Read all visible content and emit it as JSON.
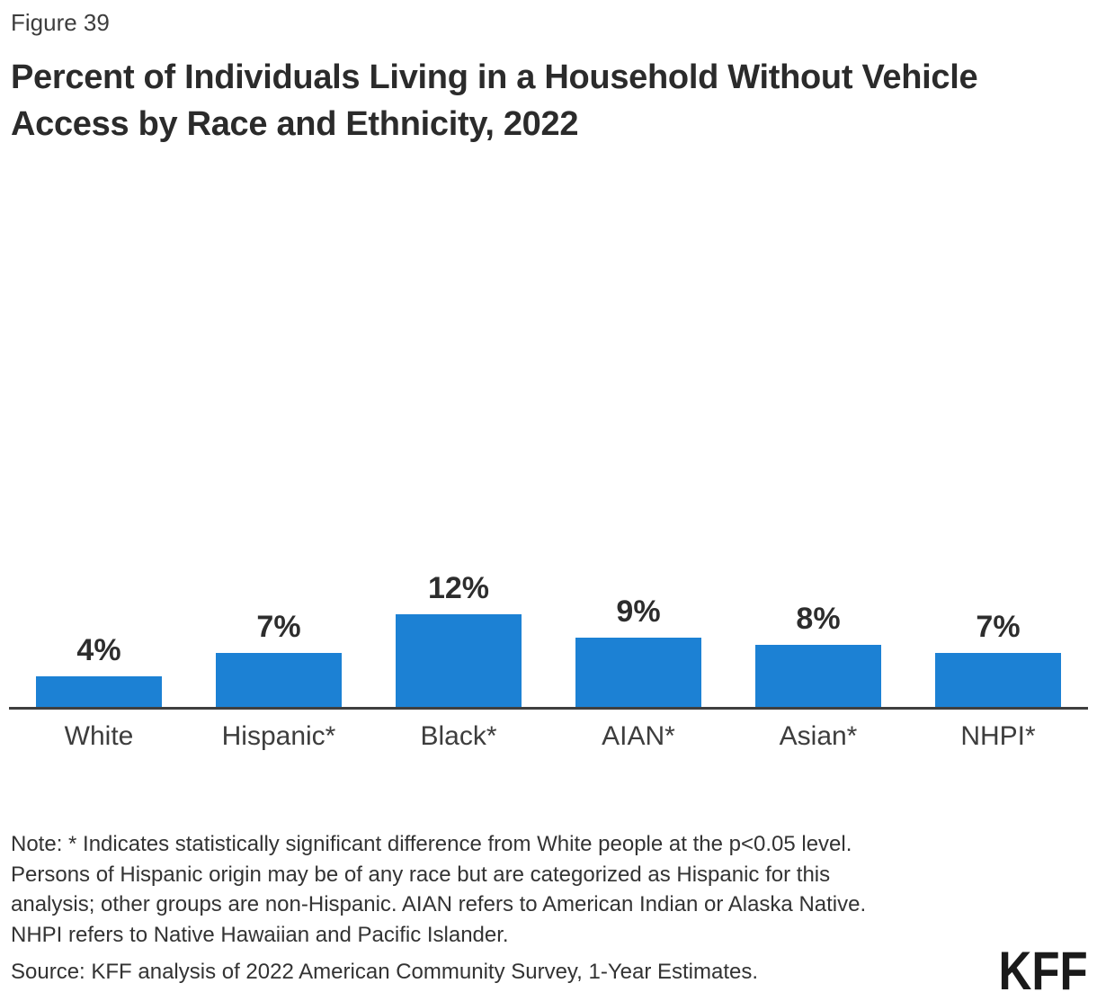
{
  "figure": {
    "label": "Figure 39"
  },
  "title": {
    "full": "Percent of Individuals Living in a Household Without Vehicle Access by Race and Ethnicity, 2022",
    "lines": [
      "Percent of Individuals Living in a Household Without Vehicle",
      "Access by Race and Ethnicity, 2022"
    ]
  },
  "chart_data": {
    "type": "bar",
    "title": "Percent of Individuals Living in a Household Without Vehicle Access by Race and Ethnicity, 2022",
    "categories": [
      "White",
      "Hispanic*",
      "Black*",
      "AIAN*",
      "Asian*",
      "NHPI*"
    ],
    "values": [
      4,
      7,
      12,
      9,
      8,
      7
    ],
    "value_labels": [
      "4%",
      "7%",
      "12%",
      "9%",
      "8%",
      "7%"
    ],
    "xlabel": "",
    "ylabel": "",
    "grid": false,
    "legend": false,
    "bar_color": "#1c81d4",
    "axis_line_color": "#3f3f3f",
    "value_label_color": "#2d2d2d",
    "category_label_color": "#3d3d3d"
  },
  "note": {
    "lines": [
      "Note: * Indicates statistically significant difference from White people at the p<0.05 level.",
      "Persons of Hispanic origin may be of any race but are categorized as Hispanic for this",
      "analysis; other groups are non-Hispanic. AIAN refers to American Indian or Alaska Native.",
      "NHPI refers to Native Hawaiian and Pacific Islander."
    ]
  },
  "source": {
    "text": "Source: KFF analysis of 2022 American Community Survey, 1-Year Estimates."
  },
  "logo": {
    "text": "KFF"
  }
}
